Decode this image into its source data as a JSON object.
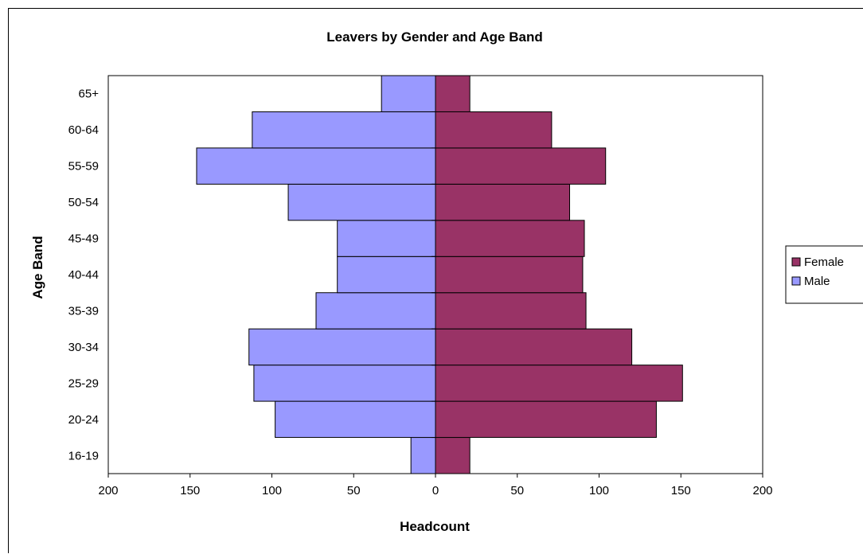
{
  "chart_data": {
    "type": "bar",
    "orientation": "horizontal",
    "title": "Leavers by Gender and Age Band",
    "xlabel": "Headcount",
    "ylabel": "Age Band",
    "categories": [
      "16-19",
      "20-24",
      "25-29",
      "30-34",
      "35-39",
      "40-44",
      "45-49",
      "50-54",
      "55-59",
      "60-64",
      "65+"
    ],
    "series": [
      {
        "name": "Female",
        "values": [
          21,
          135,
          151,
          120,
          92,
          90,
          91,
          82,
          104,
          71,
          21
        ],
        "color": "#993366"
      },
      {
        "name": "Male",
        "values": [
          -15,
          -98,
          -111,
          -114,
          -73,
          -60,
          -60,
          -90,
          -146,
          -112,
          -33
        ],
        "color": "#9999ff"
      }
    ],
    "xlim": [
      -200,
      200
    ],
    "xticks": [
      -200,
      -150,
      -100,
      -50,
      0,
      50,
      100,
      150,
      200
    ],
    "xtick_labels": [
      "200",
      "150",
      "100",
      "50",
      "0",
      "50",
      "100",
      "150",
      "200"
    ],
    "grid": false,
    "legend_position": "right"
  }
}
